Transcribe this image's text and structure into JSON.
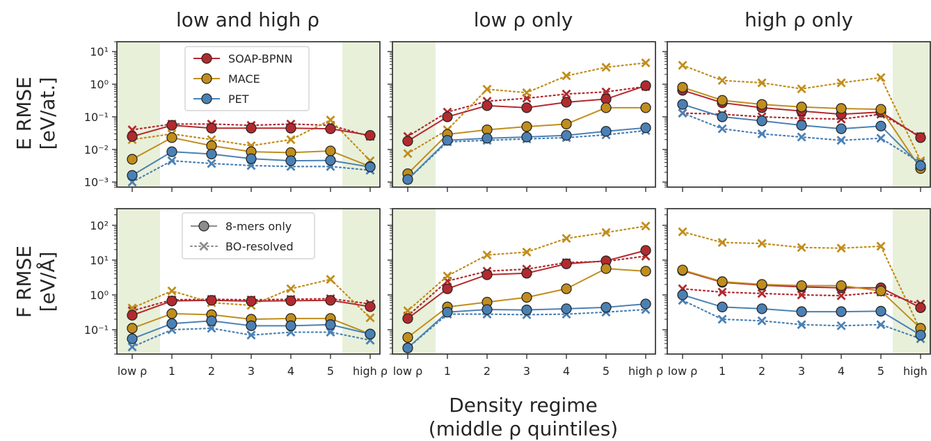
{
  "figure": {
    "column_titles": [
      "low and high ρ",
      "low ρ only",
      "high ρ only"
    ],
    "row_labels": [
      [
        "E RMSE",
        "[eV/at.]"
      ],
      [
        "F RMSE",
        "[eV/Å]"
      ]
    ],
    "xlabel_lines": [
      "Density regime",
      "(middle ρ quintiles)"
    ],
    "shade_color": "#e8f0da"
  },
  "chart_data": {
    "type": "line",
    "categories": [
      "low ρ",
      "1",
      "2",
      "3",
      "4",
      "5",
      "high ρ"
    ],
    "yscale": "log",
    "models": [
      {
        "name": "SOAP-BPNN",
        "color": "#b22a2e"
      },
      {
        "name": "MACE",
        "color": "#c18d1c"
      },
      {
        "name": "PET",
        "color": "#4a81b5"
      }
    ],
    "styles": [
      {
        "name": "8-mers only",
        "line": "solid",
        "marker": "circle"
      },
      {
        "name": "BO-resolved",
        "line": "dotted",
        "marker": "x"
      }
    ],
    "rows": [
      {
        "quantity": "E RMSE",
        "ylim": [
          0.0007,
          20
        ],
        "yticks": [
          {
            "value": 0.001,
            "label": "10⁻³"
          },
          {
            "value": 0.01,
            "label": "10⁻²"
          },
          {
            "value": 0.1,
            "label": "10⁻¹"
          },
          {
            "value": 1,
            "label": "10⁰"
          },
          {
            "value": 10,
            "label": "10¹"
          }
        ]
      },
      {
        "quantity": "F RMSE",
        "ylim": [
          0.02,
          300
        ],
        "yticks": [
          {
            "value": 0.1,
            "label": "10⁻¹"
          },
          {
            "value": 1,
            "label": "10⁰"
          },
          {
            "value": 10,
            "label": "10¹"
          },
          {
            "value": 100,
            "label": "10²"
          }
        ]
      }
    ],
    "panels": [
      {
        "row": 0,
        "col": 0,
        "shaded": [
          "low ρ",
          "high ρ"
        ],
        "series": [
          {
            "model": "SOAP-BPNN",
            "style": "8-mers only",
            "values": [
              0.025,
              0.055,
              0.045,
              0.045,
              0.045,
              0.043,
              0.027
            ]
          },
          {
            "model": "SOAP-BPNN",
            "style": "BO-resolved",
            "values": [
              0.04,
              0.06,
              0.06,
              0.055,
              0.06,
              0.055,
              0.025
            ]
          },
          {
            "model": "MACE",
            "style": "8-mers only",
            "values": [
              0.005,
              0.023,
              0.013,
              0.0085,
              0.008,
              0.009,
              0.003
            ]
          },
          {
            "model": "MACE",
            "style": "BO-resolved",
            "values": [
              0.02,
              0.03,
              0.02,
              0.013,
              0.02,
              0.08,
              0.0045
            ]
          },
          {
            "model": "PET",
            "style": "8-mers only",
            "values": [
              0.0016,
              0.0085,
              0.0072,
              0.0052,
              0.0045,
              0.0046,
              0.0029
            ]
          },
          {
            "model": "PET",
            "style": "BO-resolved",
            "values": [
              0.001,
              0.0045,
              0.0037,
              0.0032,
              0.003,
              0.003,
              0.0023
            ]
          }
        ]
      },
      {
        "row": 0,
        "col": 1,
        "shaded": [
          "low ρ"
        ],
        "series": [
          {
            "model": "SOAP-BPNN",
            "style": "8-mers only",
            "values": [
              0.018,
              0.1,
              0.22,
              0.19,
              0.28,
              0.35,
              0.9
            ]
          },
          {
            "model": "SOAP-BPNN",
            "style": "BO-resolved",
            "values": [
              0.025,
              0.14,
              0.3,
              0.37,
              0.5,
              0.58,
              0.85
            ]
          },
          {
            "model": "MACE",
            "style": "8-mers only",
            "values": [
              0.0018,
              0.029,
              0.04,
              0.05,
              0.06,
              0.19,
              0.19
            ]
          },
          {
            "model": "MACE",
            "style": "BO-resolved",
            "values": [
              0.0075,
              0.04,
              0.7,
              0.55,
              1.8,
              3.3,
              4.5
            ]
          },
          {
            "model": "PET",
            "style": "8-mers only",
            "values": [
              0.0012,
              0.019,
              0.022,
              0.024,
              0.027,
              0.036,
              0.046
            ]
          },
          {
            "model": "PET",
            "style": "BO-resolved",
            "values": [
              0.0012,
              0.017,
              0.019,
              0.021,
              0.023,
              0.028,
              0.038
            ]
          }
        ]
      },
      {
        "row": 0,
        "col": 2,
        "shaded": [
          "high ρ"
        ],
        "series": [
          {
            "model": "SOAP-BPNN",
            "style": "8-mers only",
            "values": [
              0.65,
              0.27,
              0.19,
              0.15,
              0.12,
              0.14,
              0.023
            ]
          },
          {
            "model": "SOAP-BPNN",
            "style": "BO-resolved",
            "values": [
              0.13,
              0.12,
              0.1,
              0.09,
              0.085,
              0.12,
              0.025
            ]
          },
          {
            "model": "MACE",
            "style": "8-mers only",
            "values": [
              0.8,
              0.32,
              0.24,
              0.2,
              0.18,
              0.17,
              0.0026
            ]
          },
          {
            "model": "MACE",
            "style": "BO-resolved",
            "values": [
              3.8,
              1.3,
              1.1,
              0.72,
              1.1,
              1.6,
              0.0045
            ]
          },
          {
            "model": "PET",
            "style": "8-mers only",
            "values": [
              0.24,
              0.1,
              0.075,
              0.055,
              0.043,
              0.052,
              0.0032
            ]
          },
          {
            "model": "PET",
            "style": "BO-resolved",
            "values": [
              0.13,
              0.043,
              0.03,
              0.024,
              0.019,
              0.022,
              0.0039
            ]
          }
        ]
      },
      {
        "row": 1,
        "col": 0,
        "shaded": [
          "low ρ",
          "high ρ"
        ],
        "series": [
          {
            "model": "SOAP-BPNN",
            "style": "8-mers only",
            "values": [
              0.26,
              0.67,
              0.7,
              0.66,
              0.68,
              0.7,
              0.46
            ]
          },
          {
            "model": "SOAP-BPNN",
            "style": "BO-resolved",
            "values": [
              0.35,
              0.72,
              0.75,
              0.72,
              0.75,
              0.78,
              0.55
            ]
          },
          {
            "model": "MACE",
            "style": "8-mers only",
            "values": [
              0.11,
              0.29,
              0.27,
              0.2,
              0.21,
              0.21,
              0.075
            ]
          },
          {
            "model": "MACE",
            "style": "BO-resolved",
            "values": [
              0.42,
              1.3,
              0.6,
              0.5,
              1.5,
              2.8,
              0.22
            ]
          },
          {
            "model": "PET",
            "style": "8-mers only",
            "values": [
              0.055,
              0.15,
              0.18,
              0.13,
              0.13,
              0.14,
              0.075
            ]
          },
          {
            "model": "PET",
            "style": "BO-resolved",
            "values": [
              0.032,
              0.1,
              0.11,
              0.07,
              0.085,
              0.085,
              0.05
            ]
          }
        ]
      },
      {
        "row": 1,
        "col": 1,
        "shaded": [
          "low ρ"
        ],
        "series": [
          {
            "model": "SOAP-BPNN",
            "style": "8-mers only",
            "values": [
              0.21,
              1.5,
              3.8,
              4.2,
              7.8,
              9.5,
              19
            ]
          },
          {
            "model": "SOAP-BPNN",
            "style": "BO-resolved",
            "values": [
              0.25,
              2.5,
              4.8,
              5.5,
              8.5,
              9.2,
              13
            ]
          },
          {
            "model": "MACE",
            "style": "8-mers only",
            "values": [
              0.06,
              0.45,
              0.62,
              0.85,
              1.5,
              5.7,
              4.8
            ]
          },
          {
            "model": "MACE",
            "style": "BO-resolved",
            "values": [
              0.35,
              3.5,
              14,
              17,
              42,
              62,
              95
            ]
          },
          {
            "model": "PET",
            "style": "8-mers only",
            "values": [
              0.03,
              0.32,
              0.38,
              0.37,
              0.4,
              0.44,
              0.55
            ]
          },
          {
            "model": "PET",
            "style": "BO-resolved",
            "values": [
              0.03,
              0.28,
              0.28,
              0.27,
              0.28,
              0.32,
              0.38
            ]
          }
        ]
      },
      {
        "row": 1,
        "col": 2,
        "shaded": [
          "high ρ"
        ],
        "series": [
          {
            "model": "SOAP-BPNN",
            "style": "8-mers only",
            "values": [
              5,
              2.3,
              1.9,
              1.7,
              1.6,
              1.6,
              0.43
            ]
          },
          {
            "model": "SOAP-BPNN",
            "style": "BO-resolved",
            "values": [
              1.5,
              1.2,
              1.1,
              1.0,
              0.95,
              1.2,
              0.55
            ]
          },
          {
            "model": "MACE",
            "style": "8-mers only",
            "values": [
              5.2,
              2.4,
              2.0,
              1.85,
              1.85,
              1.3,
              0.11
            ]
          },
          {
            "model": "MACE",
            "style": "BO-resolved",
            "values": [
              65,
              32,
              30,
              23,
              22,
              25,
              0.095
            ]
          },
          {
            "model": "PET",
            "style": "8-mers only",
            "values": [
              1.0,
              0.45,
              0.4,
              0.33,
              0.33,
              0.34,
              0.07
            ]
          },
          {
            "model": "PET",
            "style": "BO-resolved",
            "values": [
              0.7,
              0.2,
              0.18,
              0.14,
              0.13,
              0.14,
              0.055
            ]
          }
        ]
      }
    ]
  }
}
